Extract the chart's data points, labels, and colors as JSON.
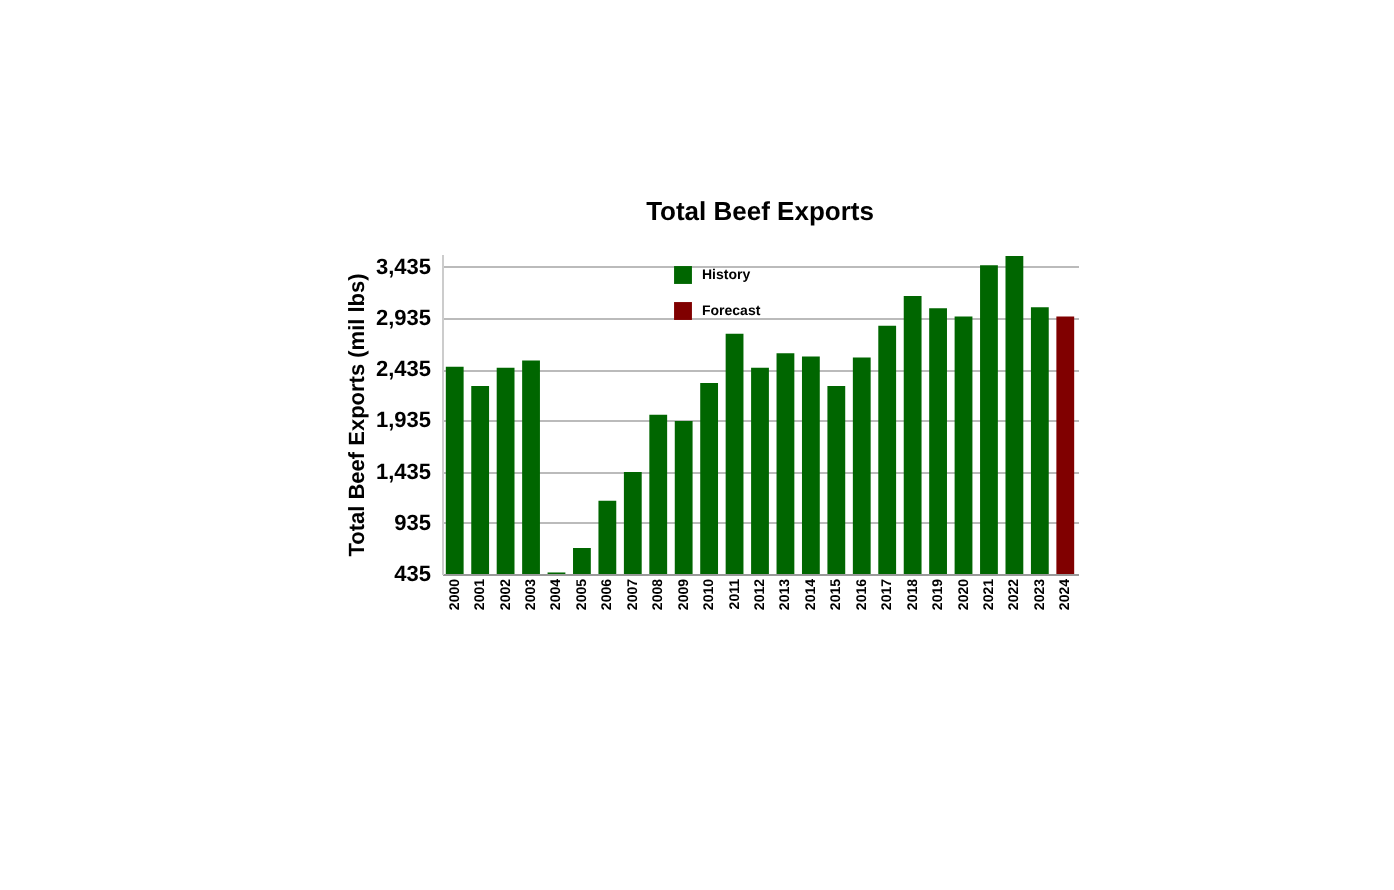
{
  "chart_data": {
    "type": "bar",
    "title": "Total Beef Exports",
    "ylabel": "Total Beef Exports (mil lbs)",
    "categories": [
      "2000",
      "2001",
      "2002",
      "2003",
      "2004",
      "2005",
      "2006",
      "2007",
      "2008",
      "2009",
      "2010",
      "2011",
      "2012",
      "2013",
      "2014",
      "2015",
      "2016",
      "2017",
      "2018",
      "2019",
      "2020",
      "2021",
      "2022",
      "2023",
      "2024"
    ],
    "series": [
      {
        "name": "History",
        "color": "#006600",
        "values": [
          2460,
          2270,
          2450,
          2520,
          450,
          690,
          1150,
          1430,
          1990,
          1930,
          2300,
          2780,
          2450,
          2590,
          2560,
          2270,
          2550,
          2860,
          3150,
          3030,
          2950,
          3450,
          3540,
          3040,
          null
        ]
      },
      {
        "name": "Forecast",
        "color": "#800000",
        "values": [
          null,
          null,
          null,
          null,
          null,
          null,
          null,
          null,
          null,
          null,
          null,
          null,
          null,
          null,
          null,
          null,
          null,
          null,
          null,
          null,
          null,
          null,
          null,
          null,
          2950
        ]
      }
    ],
    "stacked": true,
    "ylim": [
      435,
      3560
    ],
    "yticks": [
      435,
      935,
      {
        "value": 1435,
        "label": "1,435"
      },
      {
        "value": 1935,
        "label": "1,935"
      },
      {
        "value": 2435,
        "label": "2,435"
      },
      {
        "value": 2935,
        "label": "2,935"
      },
      {
        "value": 3435,
        "label": "3,435"
      }
    ],
    "grid": "y",
    "legend": "top"
  }
}
